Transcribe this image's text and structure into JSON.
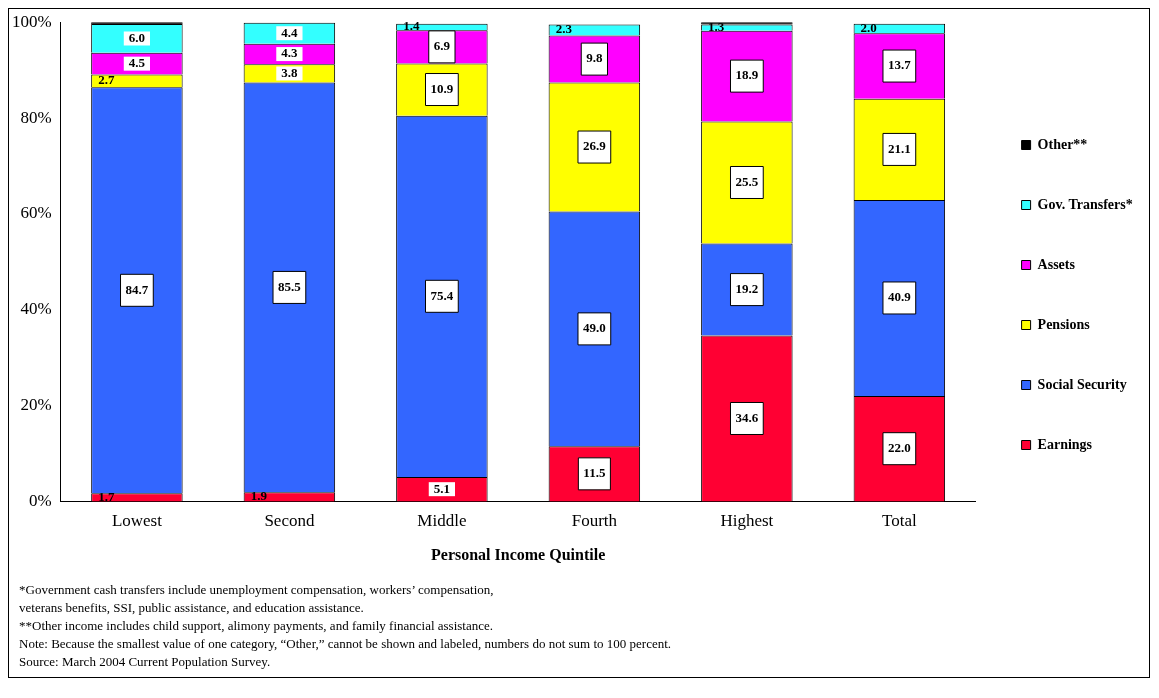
{
  "chart_data": {
    "type": "bar",
    "stacked": true,
    "xlabel": "Personal Income Quintile",
    "categories": [
      "Lowest",
      "Second",
      "Middle",
      "Fourth",
      "Highest",
      "Total"
    ],
    "series": [
      {
        "name": "Earnings",
        "color": "#ff0033",
        "values": [
          1.7,
          1.9,
          5.1,
          11.5,
          34.6,
          22.0
        ],
        "value_labels": [
          "1.7",
          "1.9",
          "5.1",
          "11.5",
          "34.6",
          "22.0"
        ]
      },
      {
        "name": "Social Security",
        "color": "#3366ff",
        "values": [
          84.7,
          85.5,
          75.4,
          49.0,
          19.2,
          40.9
        ],
        "value_labels": [
          "84.7",
          "85.5",
          "75.4",
          "49.0",
          "19.2",
          "40.9"
        ]
      },
      {
        "name": "Pensions",
        "color": "#ffff00",
        "values": [
          2.7,
          3.8,
          10.9,
          26.9,
          25.5,
          21.1
        ],
        "value_labels": [
          "2.7",
          "3.8",
          "10.9",
          "26.9",
          "25.5",
          "21.1"
        ]
      },
      {
        "name": "Assets",
        "color": "#ff00ff",
        "values": [
          4.5,
          4.3,
          6.9,
          9.8,
          18.9,
          13.7
        ],
        "value_labels": [
          "4.5",
          "4.3",
          "6.9",
          "9.8",
          "18.9",
          "13.7"
        ]
      },
      {
        "name": "Gov. Transfers*",
        "color": "#33ffff",
        "values": [
          6.0,
          4.4,
          1.4,
          2.3,
          1.3,
          2.0
        ],
        "value_labels": [
          "6.0",
          "4.4",
          "1.4",
          "2.3",
          "1.3",
          "2.0"
        ]
      },
      {
        "name": "Other**",
        "color": "#000000",
        "values": [
          0.4,
          null,
          null,
          null,
          0.5,
          null
        ],
        "value_labels": [
          null,
          null,
          null,
          null,
          null,
          null
        ]
      }
    ],
    "ylim": [
      0,
      100
    ],
    "yticks": [
      {
        "value": 0,
        "label": "0%"
      },
      {
        "value": 20,
        "label": "20%"
      },
      {
        "value": 40,
        "label": "40%"
      },
      {
        "value": 60,
        "label": "60%"
      },
      {
        "value": 80,
        "label": "80%"
      },
      {
        "value": 100,
        "label": "100%"
      }
    ],
    "grid": false,
    "legend": "right",
    "annotations": [
      "*Government cash transfers include unemployment compensation, workers’ compensation,",
      " veterans benefits, SSI, public assistance, and education assistance.",
      "**Other income includes child support, alimony payments, and family financial assistance.",
      "Note: Because the smallest value of one category, “Other,” cannot be shown and labeled,  numbers do not sum to 100 percent.",
      "Source: March 2004 Current Population Survey."
    ]
  }
}
